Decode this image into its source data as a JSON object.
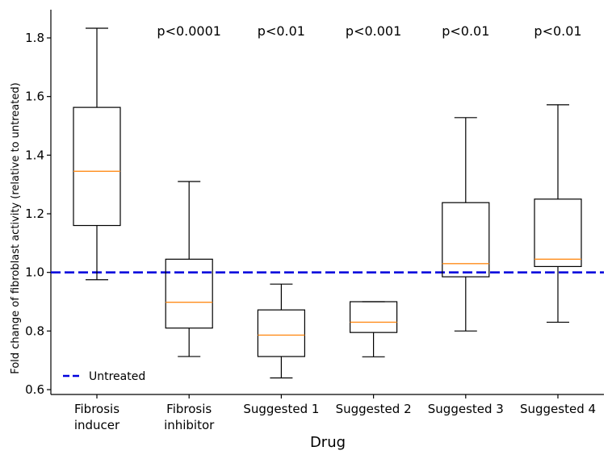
{
  "chart_data": {
    "type": "box",
    "xlabel": "Drug",
    "ylabel": "Fold change of fibroblast activity (relative to untreated)",
    "ylim": [
      0.58,
      1.89
    ],
    "yticks": [
      0.6,
      0.8,
      1.0,
      1.2,
      1.4,
      1.6,
      1.8
    ],
    "ytick_labels": [
      "0.6",
      "0.8",
      "1.0",
      "1.2",
      "1.4",
      "1.6",
      "1.8"
    ],
    "categories": [
      {
        "lines": [
          "Fibrosis",
          "inducer"
        ],
        "whisker_low": 0.975,
        "q1": 1.16,
        "median": 1.345,
        "q3": 1.563,
        "whisker_high": 1.833,
        "pvalue": ""
      },
      {
        "lines": [
          "Fibrosis",
          "inhibitor"
        ],
        "whisker_low": 0.713,
        "q1": 0.81,
        "median": 0.898,
        "q3": 1.045,
        "whisker_high": 1.31,
        "pvalue": "p<0.0001"
      },
      {
        "lines": [
          "Suggested 1"
        ],
        "whisker_low": 0.64,
        "q1": 0.713,
        "median": 0.786,
        "q3": 0.872,
        "whisker_high": 0.96,
        "pvalue": "p<0.01"
      },
      {
        "lines": [
          "Suggested 2"
        ],
        "whisker_low": 0.712,
        "q1": 0.795,
        "median": 0.83,
        "q3": 0.9,
        "whisker_high": 0.9,
        "pvalue": "p<0.001"
      },
      {
        "lines": [
          "Suggested 3"
        ],
        "whisker_low": 0.8,
        "q1": 0.985,
        "median": 1.03,
        "q3": 1.238,
        "whisker_high": 1.528,
        "pvalue": "p<0.01"
      },
      {
        "lines": [
          "Suggested 4"
        ],
        "whisker_low": 0.83,
        "q1": 1.02,
        "median": 1.045,
        "q3": 1.25,
        "whisker_high": 1.572,
        "pvalue": "p<0.01"
      }
    ],
    "reference_line": {
      "y": 1.0,
      "label": "Untreated",
      "color": "#0000dd",
      "style": "dashed"
    },
    "median_color": "#ff8c1a",
    "box_color": "#000000",
    "legend": {
      "placement": "lower-left",
      "entries": [
        "Untreated"
      ]
    },
    "grid": false
  }
}
